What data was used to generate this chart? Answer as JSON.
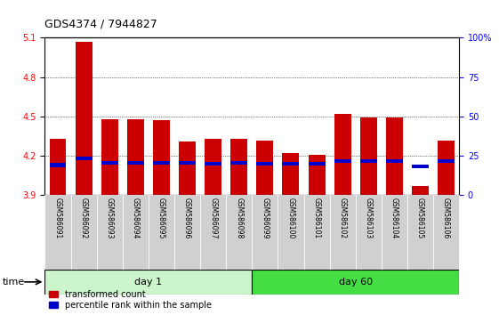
{
  "title": "GDS4374 / 7944827",
  "samples": [
    "GSM586091",
    "GSM586092",
    "GSM586093",
    "GSM586094",
    "GSM586095",
    "GSM586096",
    "GSM586097",
    "GSM586098",
    "GSM586099",
    "GSM586100",
    "GSM586101",
    "GSM586102",
    "GSM586103",
    "GSM586104",
    "GSM586105",
    "GSM586106"
  ],
  "red_heights": [
    4.33,
    5.07,
    4.48,
    4.48,
    4.47,
    4.31,
    4.33,
    4.33,
    4.32,
    4.22,
    4.21,
    4.52,
    4.49,
    4.49,
    3.97,
    4.32
  ],
  "blue_values": [
    4.13,
    4.18,
    4.15,
    4.15,
    4.15,
    4.15,
    4.14,
    4.15,
    4.14,
    4.14,
    4.14,
    4.16,
    4.16,
    4.16,
    4.12,
    4.16
  ],
  "ymin": 3.9,
  "ymax": 5.1,
  "yticks": [
    3.9,
    4.2,
    4.5,
    4.8,
    5.1
  ],
  "right_yticks": [
    0,
    25,
    50,
    75,
    100
  ],
  "right_ytick_labels": [
    "0",
    "25",
    "50",
    "75",
    "100%"
  ],
  "day1_samples": 8,
  "day60_samples": 8,
  "day1_label": "day 1",
  "day60_label": "day 60",
  "bar_color": "#cc0000",
  "blue_color": "#0000cc",
  "day1_bg": "#ccf5cc",
  "day60_bg": "#44dd44",
  "sample_bg": "#d0d0d0",
  "time_label": "time",
  "legend1": "transformed count",
  "legend2": "percentile rank within the sample"
}
